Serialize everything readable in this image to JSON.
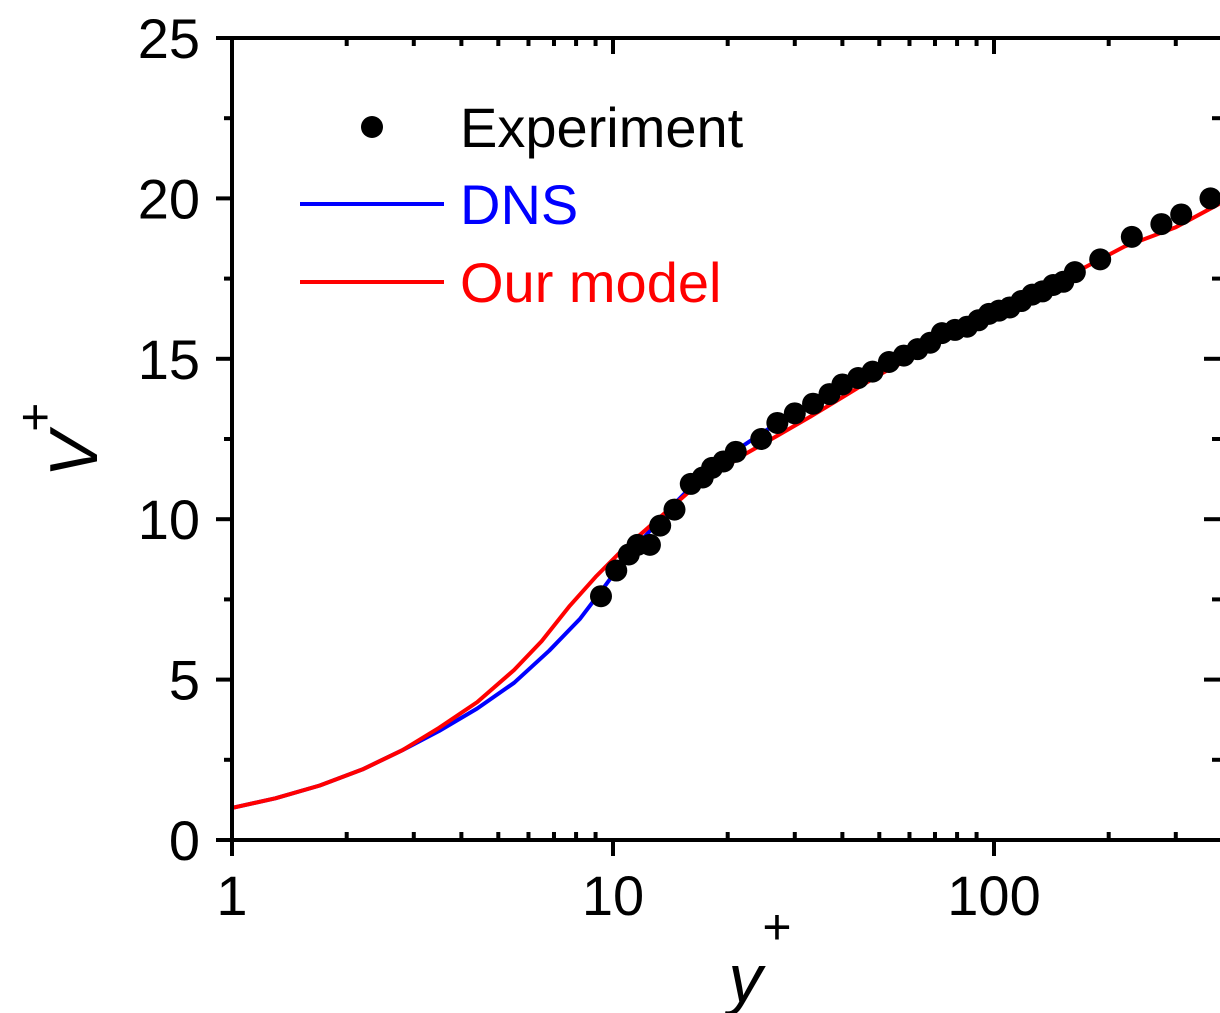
{
  "chart_data": {
    "type": "line",
    "xscale": "log",
    "xlim": [
      1,
      400
    ],
    "ylim": [
      0,
      25
    ],
    "xticks": [
      {
        "value": 1,
        "label": "1"
      },
      {
        "value": 10,
        "label": "10"
      },
      {
        "value": 100,
        "label": "100"
      }
    ],
    "yticks": [
      {
        "value": 0,
        "label": "0"
      },
      {
        "value": 5,
        "label": "5"
      },
      {
        "value": 10,
        "label": "10"
      },
      {
        "value": 15,
        "label": "15"
      },
      {
        "value": 20,
        "label": "20"
      },
      {
        "value": 25,
        "label": "25"
      }
    ],
    "xlabel": {
      "base": "y",
      "sup": "+"
    },
    "ylabel": {
      "base": "V",
      "sup": "+"
    },
    "grid": false,
    "legend_position": "top-left",
    "series": [
      {
        "name": "Experiment",
        "style": "markers",
        "color": "#000000",
        "points": [
          [
            9.3,
            7.6
          ],
          [
            10.2,
            8.4
          ],
          [
            11.0,
            8.9
          ],
          [
            11.6,
            9.2
          ],
          [
            12.5,
            9.2
          ],
          [
            13.3,
            9.8
          ],
          [
            14.5,
            10.3
          ],
          [
            16.0,
            11.1
          ],
          [
            17.2,
            11.3
          ],
          [
            18.2,
            11.6
          ],
          [
            19.5,
            11.8
          ],
          [
            21.0,
            12.1
          ],
          [
            24.5,
            12.5
          ],
          [
            27.0,
            13.0
          ],
          [
            30.0,
            13.3
          ],
          [
            33.5,
            13.6
          ],
          [
            37.0,
            13.9
          ],
          [
            40.0,
            14.2
          ],
          [
            44.0,
            14.4
          ],
          [
            48.0,
            14.6
          ],
          [
            53.0,
            14.9
          ],
          [
            58.0,
            15.1
          ],
          [
            63.0,
            15.3
          ],
          [
            68.0,
            15.5
          ],
          [
            73.0,
            15.8
          ],
          [
            79.0,
            15.9
          ],
          [
            85.0,
            16.0
          ],
          [
            91.0,
            16.2
          ],
          [
            97.0,
            16.4
          ],
          [
            103.0,
            16.5
          ],
          [
            110.0,
            16.6
          ],
          [
            118.0,
            16.8
          ],
          [
            126.0,
            17.0
          ],
          [
            134.0,
            17.1
          ],
          [
            143.0,
            17.3
          ],
          [
            152.0,
            17.4
          ],
          [
            163.0,
            17.7
          ],
          [
            190.0,
            18.1
          ],
          [
            230.0,
            18.8
          ],
          [
            275.0,
            19.2
          ],
          [
            310.0,
            19.5
          ],
          [
            370.0,
            20.0
          ]
        ]
      },
      {
        "name": "DNS",
        "style": "line",
        "color": "#0000ff",
        "points": [
          [
            1.0,
            1.0
          ],
          [
            1.3,
            1.3
          ],
          [
            1.7,
            1.7
          ],
          [
            2.2,
            2.2
          ],
          [
            2.8,
            2.8
          ],
          [
            3.5,
            3.4
          ],
          [
            4.4,
            4.1
          ],
          [
            5.5,
            4.9
          ],
          [
            6.8,
            5.9
          ],
          [
            8.2,
            6.9
          ],
          [
            9.5,
            7.9
          ],
          [
            10.5,
            8.6
          ],
          [
            12.0,
            9.4
          ],
          [
            14.0,
            10.3
          ],
          [
            16.0,
            11.0
          ],
          [
            19.0,
            11.7
          ],
          [
            22.0,
            12.3
          ],
          [
            27.0,
            13.0
          ],
          [
            33.0,
            13.6
          ],
          [
            40.0,
            14.2
          ],
          [
            50.0,
            14.8
          ],
          [
            62.0,
            15.3
          ],
          [
            75.0,
            15.8
          ],
          [
            90.0,
            16.2
          ],
          [
            110.0,
            16.6
          ],
          [
            130.0,
            16.9
          ]
        ]
      },
      {
        "name": "Our model",
        "style": "line",
        "color": "#ff0000",
        "points": [
          [
            1.0,
            1.0
          ],
          [
            1.3,
            1.3
          ],
          [
            1.7,
            1.7
          ],
          [
            2.2,
            2.2
          ],
          [
            2.8,
            2.8
          ],
          [
            3.5,
            3.5
          ],
          [
            4.4,
            4.3
          ],
          [
            5.5,
            5.3
          ],
          [
            6.5,
            6.2
          ],
          [
            7.7,
            7.3
          ],
          [
            9.0,
            8.2
          ],
          [
            10.5,
            9.0
          ],
          [
            12.0,
            9.6
          ],
          [
            14.0,
            10.3
          ],
          [
            16.0,
            10.9
          ],
          [
            19.0,
            11.5
          ],
          [
            22.0,
            12.0
          ],
          [
            27.0,
            12.6
          ],
          [
            33.0,
            13.2
          ],
          [
            40.0,
            13.8
          ],
          [
            50.0,
            14.5
          ],
          [
            62.0,
            15.1
          ],
          [
            80.0,
            15.8
          ],
          [
            100.0,
            16.4
          ],
          [
            130.0,
            17.0
          ],
          [
            170.0,
            17.8
          ],
          [
            220.0,
            18.5
          ],
          [
            300.0,
            19.1
          ],
          [
            400.0,
            19.9
          ]
        ]
      }
    ]
  }
}
